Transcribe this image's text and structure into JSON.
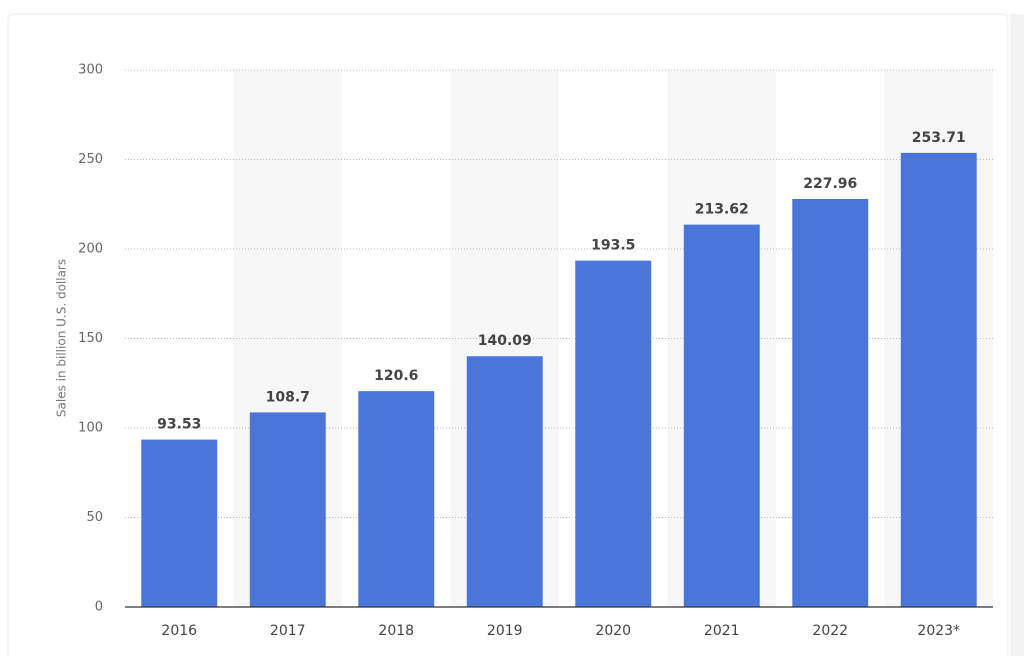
{
  "chart_data": {
    "type": "bar",
    "y_label": "Sales in billion U.S. dollars",
    "categories": [
      "2016",
      "2017",
      "2018",
      "2019",
      "2020",
      "2021",
      "2022",
      "2023*"
    ],
    "values": [
      93.53,
      108.7,
      120.6,
      140.09,
      193.5,
      213.62,
      227.96,
      253.71
    ],
    "color": "#4a76d9",
    "ylim": [
      0,
      300
    ],
    "yticks": [
      0,
      50,
      100,
      150,
      200,
      250,
      300
    ],
    "grid": true
  }
}
